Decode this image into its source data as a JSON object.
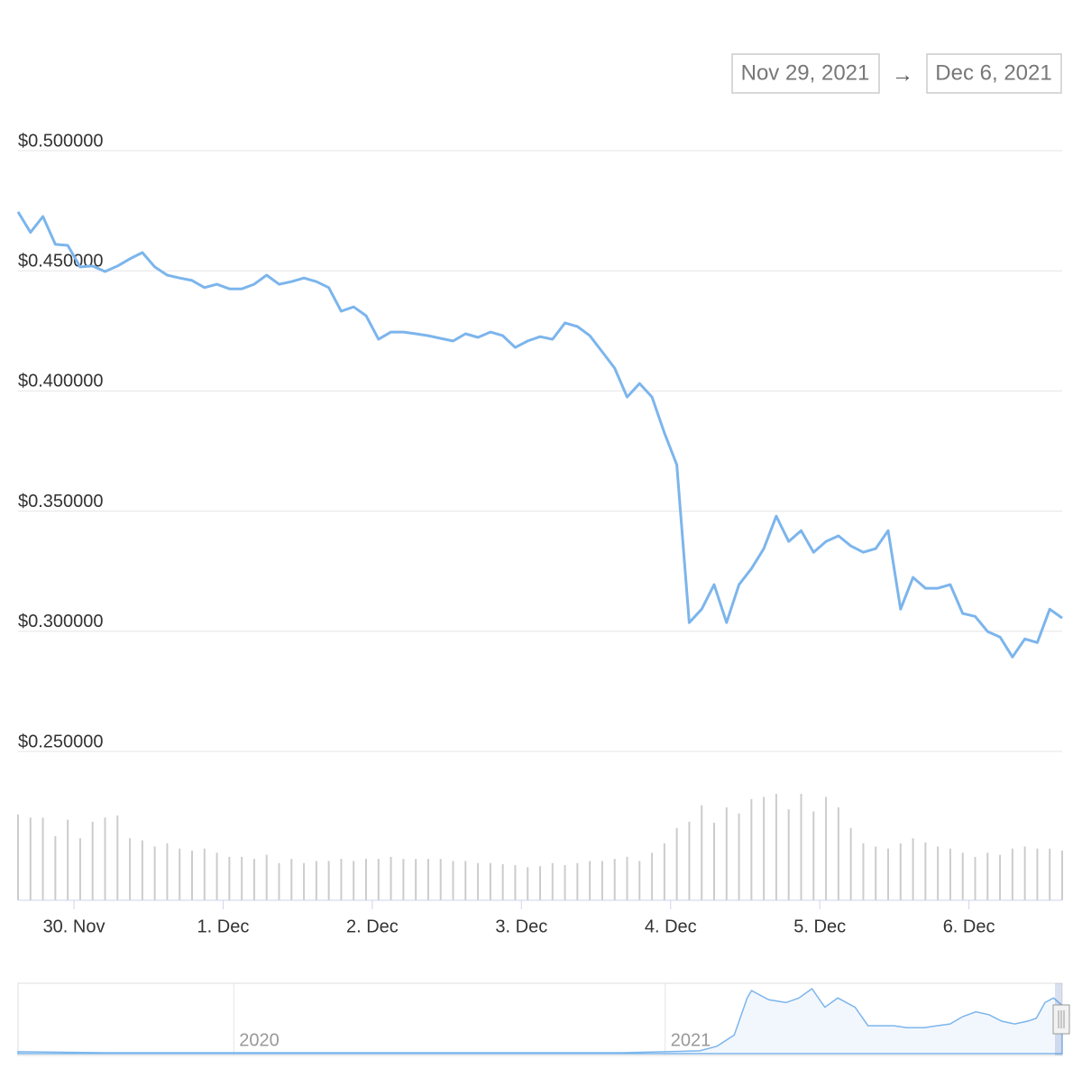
{
  "range_picker": {
    "from": "Nov 29, 2021",
    "arrow": "→",
    "to": "Dec 6, 2021"
  },
  "chart_data": [
    {
      "type": "line",
      "color": "#7cb5ec",
      "grid": true,
      "x": [
        "2021-11-29T15:00",
        "2021-11-29T17:00",
        "2021-11-29T19:00",
        "2021-11-29T21:00",
        "2021-11-29T23:00",
        "2021-11-30T01:00",
        "2021-11-30T03:00",
        "2021-11-30T05:00",
        "2021-11-30T07:00",
        "2021-11-30T09:00",
        "2021-11-30T11:00",
        "2021-11-30T13:00",
        "2021-11-30T15:00",
        "2021-11-30T17:00",
        "2021-11-30T19:00",
        "2021-11-30T21:00",
        "2021-11-30T23:00",
        "2021-12-01T01:00",
        "2021-12-01T03:00",
        "2021-12-01T05:00",
        "2021-12-01T07:00",
        "2021-12-01T09:00",
        "2021-12-01T11:00",
        "2021-12-01T13:00",
        "2021-12-01T15:00",
        "2021-12-01T17:00",
        "2021-12-01T19:00",
        "2021-12-01T21:00",
        "2021-12-01T23:00",
        "2021-12-02T01:00",
        "2021-12-02T03:00",
        "2021-12-02T05:00",
        "2021-12-02T07:00",
        "2021-12-02T09:00",
        "2021-12-02T11:00",
        "2021-12-02T13:00",
        "2021-12-02T15:00",
        "2021-12-02T17:00",
        "2021-12-02T19:00",
        "2021-12-02T21:00",
        "2021-12-02T23:00",
        "2021-12-03T01:00",
        "2021-12-03T03:00",
        "2021-12-03T05:00",
        "2021-12-03T07:00",
        "2021-12-03T09:00",
        "2021-12-03T11:00",
        "2021-12-03T13:00",
        "2021-12-03T15:00",
        "2021-12-03T17:00",
        "2021-12-03T19:00",
        "2021-12-03T21:00",
        "2021-12-03T23:00",
        "2021-12-04T01:00",
        "2021-12-04T03:00",
        "2021-12-04T05:00",
        "2021-12-04T07:00",
        "2021-12-04T09:00",
        "2021-12-04T11:00",
        "2021-12-04T13:00",
        "2021-12-04T15:00",
        "2021-12-04T17:00",
        "2021-12-04T19:00",
        "2021-12-04T21:00",
        "2021-12-04T23:00",
        "2021-12-05T01:00",
        "2021-12-05T03:00",
        "2021-12-05T05:00",
        "2021-12-05T07:00",
        "2021-12-05T09:00",
        "2021-12-05T11:00",
        "2021-12-05T13:00",
        "2021-12-05T15:00",
        "2021-12-05T17:00",
        "2021-12-05T19:00",
        "2021-12-05T21:00",
        "2021-12-05T23:00",
        "2021-12-06T01:00",
        "2021-12-06T03:00",
        "2021-12-06T05:00",
        "2021-12-06T07:00",
        "2021-12-06T09:00",
        "2021-12-06T11:00",
        "2021-12-06T13:00",
        "2021-12-06T15:00"
      ],
      "values": [
        0.4745,
        0.466,
        0.4726,
        0.461,
        0.4606,
        0.4516,
        0.452,
        0.4497,
        0.452,
        0.455,
        0.4576,
        0.4516,
        0.4482,
        0.447,
        0.446,
        0.443,
        0.4444,
        0.4425,
        0.4425,
        0.4444,
        0.4482,
        0.4444,
        0.4455,
        0.447,
        0.4455,
        0.443,
        0.4332,
        0.435,
        0.4313,
        0.4215,
        0.4245,
        0.4245,
        0.4238,
        0.423,
        0.4219,
        0.4208,
        0.4238,
        0.4223,
        0.4245,
        0.423,
        0.4181,
        0.4208,
        0.4226,
        0.4215,
        0.4283,
        0.4268,
        0.423,
        0.4163,
        0.4095,
        0.3975,
        0.4031,
        0.3975,
        0.3825,
        0.3693,
        0.3036,
        0.3092,
        0.3194,
        0.3036,
        0.3194,
        0.3261,
        0.3344,
        0.3479,
        0.3374,
        0.3419,
        0.3329,
        0.3374,
        0.3397,
        0.3355,
        0.3329,
        0.3344,
        0.3419,
        0.3092,
        0.3224,
        0.3179,
        0.3179,
        0.3194,
        0.3074,
        0.3062,
        0.2999,
        0.2976,
        0.2893,
        0.2968,
        0.2953,
        0.3092,
        0.3055
      ],
      "volume": [
        83,
        80,
        80,
        62,
        78,
        60,
        76,
        80,
        82,
        60,
        58,
        52,
        55,
        50,
        48,
        50,
        46,
        42,
        42,
        40,
        44,
        36,
        40,
        36,
        38,
        38,
        40,
        38,
        40,
        40,
        42,
        40,
        40,
        40,
        40,
        38,
        38,
        36,
        36,
        35,
        34,
        32,
        33,
        36,
        34,
        36,
        38,
        38,
        40,
        42,
        38,
        46,
        55,
        70,
        76,
        92,
        75,
        90,
        84,
        98,
        100,
        103,
        88,
        103,
        86,
        100,
        90,
        70,
        55,
        52,
        50,
        55,
        60,
        56,
        52,
        50,
        46,
        42,
        46,
        44,
        50,
        52,
        50,
        50,
        48
      ],
      "volume_color": "#cccccc",
      "xlim": [
        "2021-11-29T15:00",
        "2021-12-06T15:00"
      ],
      "xticks": [
        {
          "value": "2021-11-30T00:00",
          "label": "30. Nov"
        },
        {
          "value": "2021-12-01T00:00",
          "label": "1. Dec"
        },
        {
          "value": "2021-12-02T00:00",
          "label": "2. Dec"
        },
        {
          "value": "2021-12-03T00:00",
          "label": "3. Dec"
        },
        {
          "value": "2021-12-04T00:00",
          "label": "4. Dec"
        },
        {
          "value": "2021-12-05T00:00",
          "label": "5. Dec"
        },
        {
          "value": "2021-12-06T00:00",
          "label": "6. Dec"
        }
      ],
      "ylim": [
        0.25,
        0.5
      ],
      "yticks": [
        {
          "value": 0.25,
          "label": "$0.250000"
        },
        {
          "value": 0.3,
          "label": "$0.300000"
        },
        {
          "value": 0.35,
          "label": "$0.350000"
        },
        {
          "value": 0.4,
          "label": "$0.400000"
        },
        {
          "value": 0.45,
          "label": "$0.450000"
        },
        {
          "value": 0.5,
          "label": "$0.500000"
        }
      ]
    },
    {
      "type": "area",
      "color": "#7cb5ec",
      "x": [
        2019.5,
        2019.7,
        2019.9,
        2020.1,
        2020.3,
        2020.5,
        2020.7,
        2020.9,
        2021.0,
        2021.08,
        2021.12,
        2021.16,
        2021.19,
        2021.2,
        2021.24,
        2021.28,
        2021.31,
        2021.34,
        2021.37,
        2021.4,
        2021.44,
        2021.47,
        2021.5,
        2021.53,
        2021.56,
        2021.6,
        2021.63,
        2021.66,
        2021.69,
        2021.72,
        2021.75,
        2021.78,
        2021.81,
        2021.84,
        2021.86,
        2021.88,
        2021.9,
        2021.92
      ],
      "values": [
        0.02,
        0.01,
        0.01,
        0.01,
        0.01,
        0.01,
        0.01,
        0.01,
        0.02,
        0.03,
        0.08,
        0.2,
        0.6,
        0.68,
        0.58,
        0.55,
        0.6,
        0.7,
        0.5,
        0.6,
        0.5,
        0.3,
        0.3,
        0.3,
        0.28,
        0.28,
        0.3,
        0.32,
        0.4,
        0.45,
        0.42,
        0.35,
        0.32,
        0.35,
        0.38,
        0.55,
        0.6,
        0.52
      ],
      "xlim": [
        2019.5,
        2021.92
      ],
      "xticks": [
        2020,
        2021
      ]
    }
  ]
}
